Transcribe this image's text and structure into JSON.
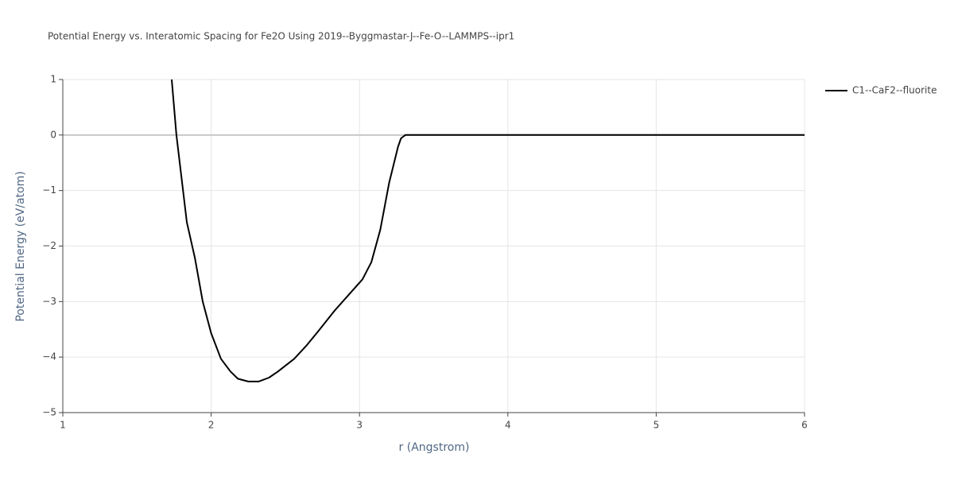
{
  "chart_data": {
    "type": "line",
    "title": "Potential Energy vs. Interatomic Spacing for Fe2O Using 2019--Byggmastar-J--Fe-O--LAMMPS--ipr1",
    "x_label": "r (Angstrom)",
    "y_label": "Potential Energy (eV/atom)",
    "x": [
      1.734,
      1.766,
      1.836,
      1.89,
      1.943,
      2.0,
      2.066,
      2.13,
      2.18,
      2.25,
      2.32,
      2.39,
      2.45,
      2.56,
      2.64,
      2.72,
      2.83,
      2.91,
      3.02,
      3.08,
      3.14,
      3.2,
      3.26,
      3.28,
      3.31,
      4,
      5,
      6
    ],
    "series": [
      {
        "name": "C1--CaF2--fluorite",
        "color": "#000000",
        "values": [
          1,
          0,
          -1.57,
          -2.21,
          -3,
          -3.57,
          -4.03,
          -4.26,
          -4.39,
          -4.44,
          -4.44,
          -4.37,
          -4.26,
          -4.03,
          -3.8,
          -3.54,
          -3.17,
          -2.93,
          -2.6,
          -2.29,
          -1.71,
          -0.86,
          -0.21,
          -0.06,
          0,
          0,
          0,
          0
        ]
      }
    ],
    "xlim": [
      1,
      6
    ],
    "xticks": [
      1,
      2,
      3,
      4,
      5,
      6
    ],
    "ylim": [
      -5,
      1
    ],
    "yticks": [
      {
        "value": -5,
        "label": "−5"
      },
      {
        "value": -4,
        "label": "−4"
      },
      {
        "value": -3,
        "label": "−3"
      },
      {
        "value": -2,
        "label": "−2"
      },
      {
        "value": -1,
        "label": "−1"
      },
      0,
      1
    ],
    "grid": true,
    "legend": "right"
  }
}
